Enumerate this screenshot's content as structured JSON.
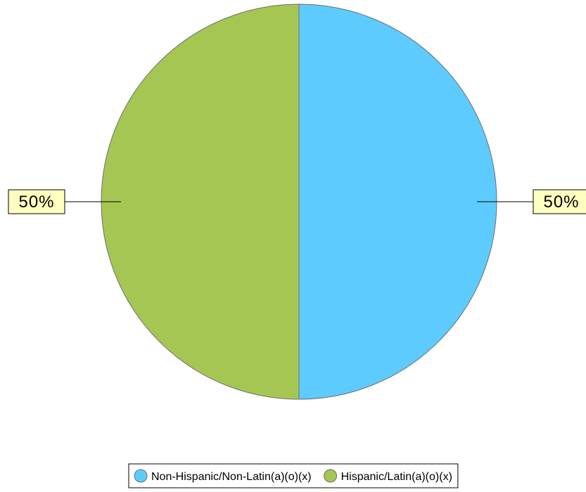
{
  "chart_data": {
    "type": "pie",
    "title": "",
    "slices": [
      {
        "label": "Non-Hispanic/Non-Latin(a)(o)(x)",
        "value": 50,
        "display": "50%",
        "color": "#5ecbff"
      },
      {
        "label": "Hispanic/Latin(a)(o)(x)",
        "value": 50,
        "display": "50%",
        "color": "#a6c653"
      }
    ],
    "start_angle": "12 o'clock, clockwise",
    "legend_position": "bottom-center",
    "label_style": {
      "background": "#ffffc0",
      "border": "#000000"
    }
  }
}
